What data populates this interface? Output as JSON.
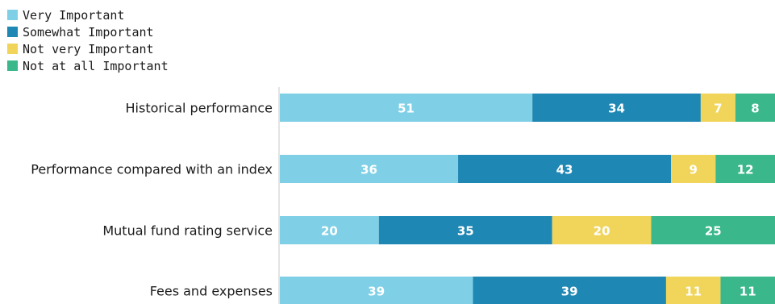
{
  "chart_data": {
    "type": "bar",
    "orientation": "horizontal",
    "stacked": true,
    "categories": [
      "Historical performance",
      "Performance compared with an index",
      "Mutual fund rating service",
      "Fees and expenses"
    ],
    "series": [
      {
        "name": "Very Important",
        "color": "#7fd0e6",
        "values": [
          51,
          36,
          20,
          39
        ]
      },
      {
        "name": "Somewhat Important",
        "color": "#1f87b3",
        "values": [
          34,
          43,
          35,
          39
        ]
      },
      {
        "name": "Not very Important",
        "color": "#f0d55a",
        "values": [
          7,
          9,
          20,
          11
        ]
      },
      {
        "name": "Not at all Important",
        "color": "#3ab88c",
        "values": [
          8,
          12,
          25,
          11
        ]
      }
    ],
    "legend_position": "top-left",
    "grid": false,
    "xlim": [
      0,
      100
    ]
  }
}
